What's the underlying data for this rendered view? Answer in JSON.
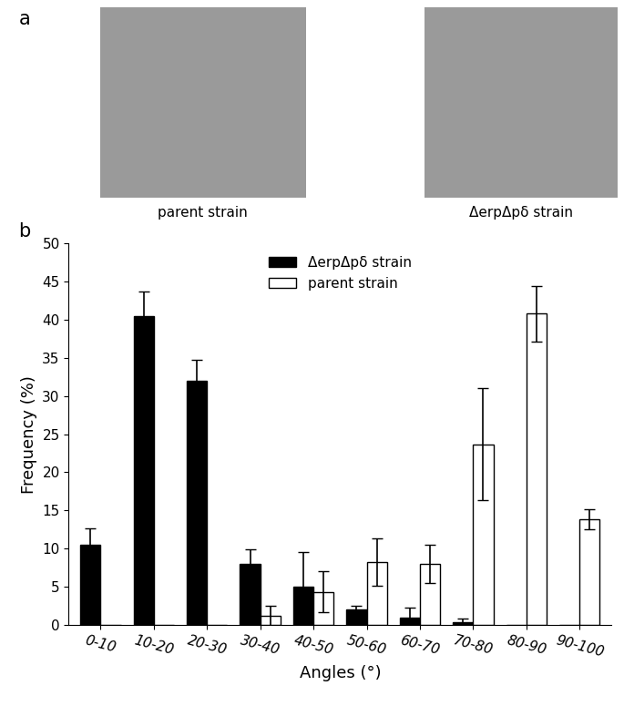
{
  "panel_labels": [
    "a",
    "b"
  ],
  "images": [
    {
      "caption": "parent strain"
    },
    {
      "caption": "ΔerpΔpδ strain"
    }
  ],
  "chart_data": {
    "type": "bar",
    "categories": [
      "0-10",
      "10-20",
      "20-30",
      "30-40",
      "40-50",
      "50-60",
      "60-70",
      "70-80",
      "80-90",
      "90-100"
    ],
    "x_label": "Angles (°)",
    "y_label": "Frequency (%)",
    "ylim": [
      0,
      50
    ],
    "yticks": [
      0,
      5,
      10,
      15,
      20,
      25,
      30,
      35,
      40,
      45,
      50
    ],
    "legend": "upper center",
    "series": [
      {
        "name": "ΔerpΔpδ strain",
        "color": "#000000",
        "values": [
          10.5,
          40.5,
          32,
          8,
          5,
          2,
          1,
          0.3,
          0,
          0
        ],
        "errors": [
          2.2,
          3.2,
          2.8,
          1.9,
          4.5,
          0.5,
          1.2,
          0.5,
          null,
          null
        ]
      },
      {
        "name": "parent strain",
        "color": "#ffffff",
        "values": [
          0,
          0,
          0,
          1.2,
          4.3,
          8.2,
          8,
          23.7,
          40.8,
          13.8
        ],
        "errors": [
          null,
          null,
          null,
          1.3,
          2.7,
          3.1,
          2.5,
          7.3,
          3.6,
          1.3
        ]
      }
    ]
  }
}
